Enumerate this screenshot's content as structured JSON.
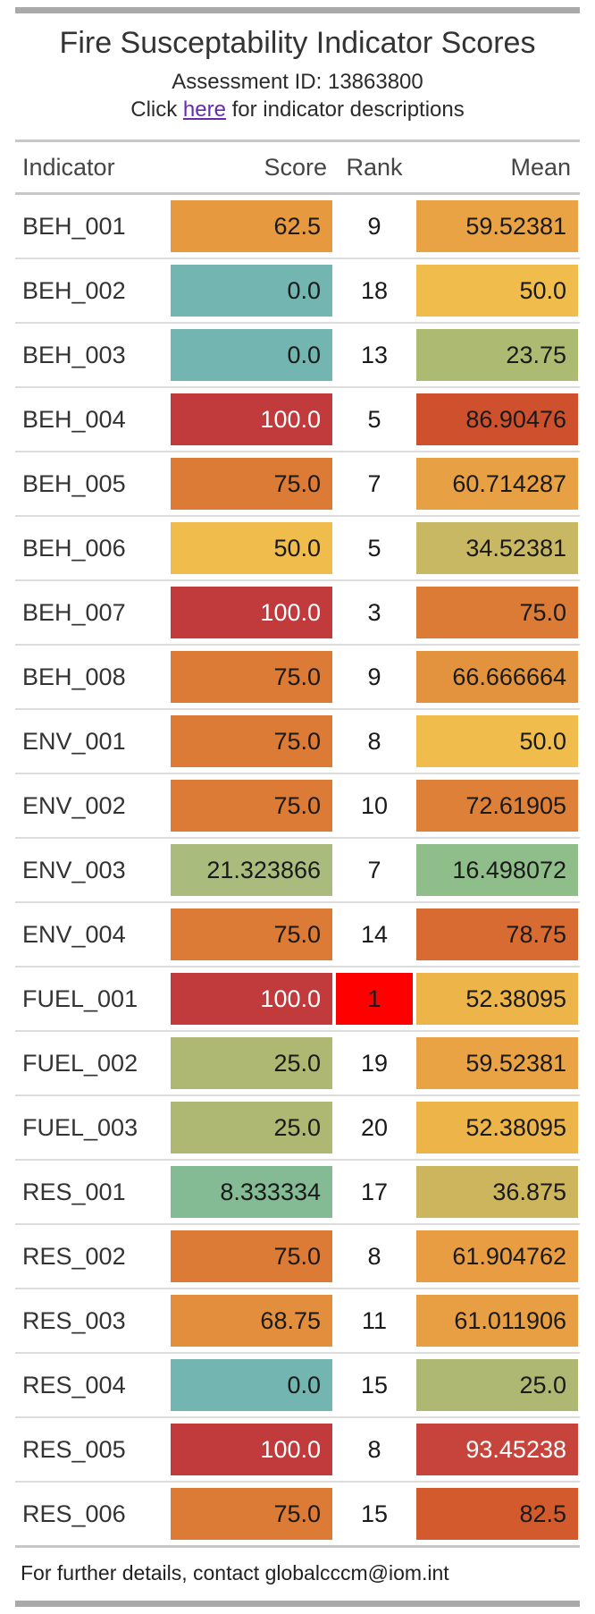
{
  "header": {
    "title": "Fire Susceptability Indicator Scores",
    "assessment_line": "Assessment ID: 13863800",
    "click_line": {
      "prefix": "Click ",
      "link_text": "here",
      "suffix": " for indicator descriptions"
    }
  },
  "colors": {
    "accent_bar": "#a9a9a9",
    "link": "#652BB1",
    "rank1_highlight": "#ff0000",
    "divider_heavy": "#c7c7c7",
    "divider_light": "#dcdcdc",
    "scale_low_teal": "#72B5B1",
    "scale_high_red": "#C13B3D"
  },
  "table": {
    "columns": [
      "Indicator",
      "Score",
      "Rank",
      "Mean"
    ],
    "rows": [
      {
        "indicator": "BEH_001",
        "score": "62.5",
        "score_bg": "#E79940",
        "score_fg": "#1a1a1a",
        "rank": "9",
        "rank_bg": "",
        "mean": "59.52381",
        "mean_bg": "#E9A345",
        "mean_fg": "#1a1a1a"
      },
      {
        "indicator": "BEH_002",
        "score": "0.0",
        "score_bg": "#72B5B1",
        "score_fg": "#1a1a1a",
        "rank": "18",
        "rank_bg": "",
        "mean": "50.0",
        "mean_bg": "#F0BC4B",
        "mean_fg": "#1a1a1a"
      },
      {
        "indicator": "BEH_003",
        "score": "0.0",
        "score_bg": "#72B5B1",
        "score_fg": "#1a1a1a",
        "rank": "13",
        "rank_bg": "",
        "mean": "23.75",
        "mean_bg": "#ACBA72",
        "mean_fg": "#1a1a1a"
      },
      {
        "indicator": "BEH_004",
        "score": "100.0",
        "score_bg": "#C13B3D",
        "score_fg": "#ffffff",
        "rank": "5",
        "rank_bg": "",
        "mean": "86.90476",
        "mean_bg": "#CE502D",
        "mean_fg": "#1a1a1a"
      },
      {
        "indicator": "BEH_005",
        "score": "75.0",
        "score_bg": "#DC7B36",
        "score_fg": "#1a1a1a",
        "rank": "7",
        "rank_bg": "",
        "mean": "60.714287",
        "mean_bg": "#E8A044",
        "mean_fg": "#1a1a1a"
      },
      {
        "indicator": "BEH_006",
        "score": "50.0",
        "score_bg": "#F0BC4B",
        "score_fg": "#1a1a1a",
        "rank": "5",
        "rank_bg": "",
        "mean": "34.52381",
        "mean_bg": "#C8B763",
        "mean_fg": "#1a1a1a"
      },
      {
        "indicator": "BEH_007",
        "score": "100.0",
        "score_bg": "#C13B3D",
        "score_fg": "#ffffff",
        "rank": "3",
        "rank_bg": "",
        "mean": "75.0",
        "mean_bg": "#DC7B36",
        "mean_fg": "#1a1a1a"
      },
      {
        "indicator": "BEH_008",
        "score": "75.0",
        "score_bg": "#DC7B36",
        "score_fg": "#1a1a1a",
        "rank": "9",
        "rank_bg": "",
        "mean": "66.666664",
        "mean_bg": "#E3923E",
        "mean_fg": "#1a1a1a"
      },
      {
        "indicator": "ENV_001",
        "score": "75.0",
        "score_bg": "#DC7B36",
        "score_fg": "#1a1a1a",
        "rank": "8",
        "rank_bg": "",
        "mean": "50.0",
        "mean_bg": "#F0BC4B",
        "mean_fg": "#1a1a1a"
      },
      {
        "indicator": "ENV_002",
        "score": "75.0",
        "score_bg": "#DC7B36",
        "score_fg": "#1a1a1a",
        "rank": "10",
        "rank_bg": "",
        "mean": "72.61905",
        "mean_bg": "#DE8038",
        "mean_fg": "#1a1a1a"
      },
      {
        "indicator": "ENV_003",
        "score": "21.323866",
        "score_bg": "#A9BC7D",
        "score_fg": "#1a1a1a",
        "rank": "7",
        "rank_bg": "",
        "mean": "16.498072",
        "mean_bg": "#8FBE8A",
        "mean_fg": "#1a1a1a"
      },
      {
        "indicator": "ENV_004",
        "score": "75.0",
        "score_bg": "#DC7B36",
        "score_fg": "#1a1a1a",
        "rank": "14",
        "rank_bg": "",
        "mean": "78.75",
        "mean_bg": "#D76B31",
        "mean_fg": "#1a1a1a"
      },
      {
        "indicator": "FUEL_001",
        "score": "100.0",
        "score_bg": "#C13B3D",
        "score_fg": "#ffffff",
        "rank": "1",
        "rank_bg": "#FF0000",
        "mean": "52.38095",
        "mean_bg": "#EDB449",
        "mean_fg": "#1a1a1a"
      },
      {
        "indicator": "FUEL_002",
        "score": "25.0",
        "score_bg": "#AFB873",
        "score_fg": "#1a1a1a",
        "rank": "19",
        "rank_bg": "",
        "mean": "59.52381",
        "mean_bg": "#E9A345",
        "mean_fg": "#1a1a1a"
      },
      {
        "indicator": "FUEL_003",
        "score": "25.0",
        "score_bg": "#AFB873",
        "score_fg": "#1a1a1a",
        "rank": "20",
        "rank_bg": "",
        "mean": "52.38095",
        "mean_bg": "#EDB449",
        "mean_fg": "#1a1a1a"
      },
      {
        "indicator": "RES_001",
        "score": "8.333334",
        "score_bg": "#84BA94",
        "score_fg": "#1a1a1a",
        "rank": "17",
        "rank_bg": "",
        "mean": "36.875",
        "mean_bg": "#CDB55D",
        "mean_fg": "#1a1a1a"
      },
      {
        "indicator": "RES_002",
        "score": "75.0",
        "score_bg": "#DC7B36",
        "score_fg": "#1a1a1a",
        "rank": "8",
        "rank_bg": "",
        "mean": "61.904762",
        "mean_bg": "#E89D42",
        "mean_fg": "#1a1a1a"
      },
      {
        "indicator": "RES_003",
        "score": "68.75",
        "score_bg": "#E28E3C",
        "score_fg": "#1a1a1a",
        "rank": "11",
        "rank_bg": "",
        "mean": "61.011906",
        "mean_bg": "#E89E43",
        "mean_fg": "#1a1a1a"
      },
      {
        "indicator": "RES_004",
        "score": "0.0",
        "score_bg": "#72B5B1",
        "score_fg": "#1a1a1a",
        "rank": "15",
        "rank_bg": "",
        "mean": "25.0",
        "mean_bg": "#AFB873",
        "mean_fg": "#1a1a1a"
      },
      {
        "indicator": "RES_005",
        "score": "100.0",
        "score_bg": "#C13B3D",
        "score_fg": "#ffffff",
        "rank": "8",
        "rank_bg": "",
        "mean": "93.45238",
        "mean_bg": "#C7443C",
        "mean_fg": "#ffffff"
      },
      {
        "indicator": "RES_006",
        "score": "75.0",
        "score_bg": "#DC7B36",
        "score_fg": "#1a1a1a",
        "rank": "15",
        "rank_bg": "",
        "mean": "82.5",
        "mean_bg": "#D25A2D",
        "mean_fg": "#1a1a1a"
      }
    ]
  },
  "footer": {
    "text": "For further details, contact globalcccm@iom.int"
  }
}
